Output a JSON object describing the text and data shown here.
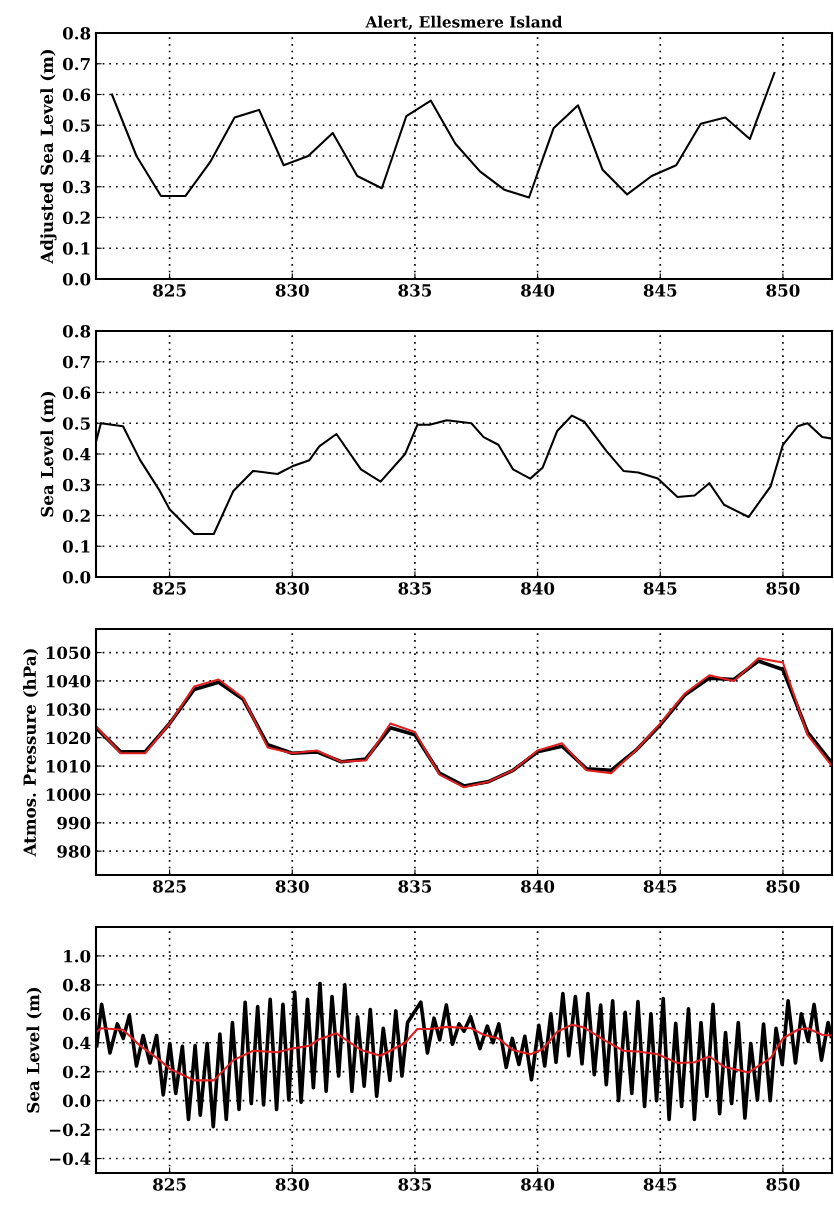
{
  "chart_data": [
    {
      "type": "line",
      "title": "Alert, Ellesmere Island",
      "ylabel": "Adjusted Sea Level (m)",
      "xlim": [
        822,
        852
      ],
      "xticks": [
        825,
        830,
        835,
        840,
        845,
        850
      ],
      "ylim": [
        0,
        0.8
      ],
      "yticks": [
        {
          "value": 0,
          "label": "0.0"
        },
        0.1,
        0.2,
        0.3,
        0.4,
        0.5,
        0.6,
        0.7,
        0.8
      ],
      "grid": true,
      "x": [
        822.65,
        823.65,
        824.65,
        825.65,
        826.65,
        827.65,
        828.65,
        829.65,
        830.65,
        831.65,
        832.65,
        833.65,
        834.65,
        835.65,
        836.65,
        837.65,
        838.65,
        839.65,
        840.65,
        841.65,
        842.65,
        843.65,
        844.65,
        845.65,
        846.65,
        847.65,
        848.65,
        849.65
      ],
      "series": [
        {
          "color": "#000000",
          "values": [
            0.6,
            0.4,
            0.27,
            0.27,
            0.38,
            0.525,
            0.55,
            0.37,
            0.4,
            0.475,
            0.335,
            0.295,
            0.53,
            0.58,
            0.44,
            0.35,
            0.29,
            0.265,
            0.49,
            0.565,
            0.355,
            0.275,
            0.335,
            0.37,
            0.505,
            0.525,
            0.455,
            0.67
          ]
        }
      ]
    },
    {
      "type": "line",
      "ylabel": "Sea Level (m)",
      "xlim": [
        822,
        852
      ],
      "xticks": [
        825,
        830,
        835,
        840,
        845,
        850
      ],
      "ylim": [
        0,
        0.8
      ],
      "yticks": [
        {
          "value": 0,
          "label": "0.0"
        },
        0.1,
        0.2,
        0.3,
        0.4,
        0.5,
        0.6,
        0.7,
        0.8
      ],
      "grid": true,
      "x": [
        822.0,
        822.2,
        823.1,
        823.8,
        824.6,
        825.0,
        826.0,
        826.8,
        827.6,
        828.4,
        829.4,
        830.0,
        830.7,
        831.1,
        831.8,
        832.8,
        833.6,
        834.6,
        835.1,
        835.6,
        836.3,
        837.3,
        837.8,
        838.4,
        839.0,
        839.7,
        840.2,
        840.8,
        841.4,
        841.9,
        842.8,
        843.5,
        844.1,
        844.9,
        845.7,
        846.4,
        847.0,
        847.6,
        848.6,
        849.5,
        850.0,
        850.6,
        851.0,
        851.6,
        852.0
      ],
      "series": [
        {
          "color": "#000000",
          "values": [
            0.44,
            0.5,
            0.49,
            0.38,
            0.28,
            0.22,
            0.14,
            0.14,
            0.28,
            0.345,
            0.335,
            0.36,
            0.38,
            0.425,
            0.465,
            0.35,
            0.31,
            0.4,
            0.495,
            0.495,
            0.51,
            0.5,
            0.455,
            0.43,
            0.35,
            0.32,
            0.355,
            0.475,
            0.525,
            0.505,
            0.41,
            0.345,
            0.34,
            0.32,
            0.26,
            0.265,
            0.305,
            0.235,
            0.195,
            0.295,
            0.43,
            0.49,
            0.5,
            0.455,
            0.45
          ]
        }
      ]
    },
    {
      "type": "line",
      "ylabel": "Atmos. Pressure (hPa)",
      "xlim": [
        822,
        852
      ],
      "xticks": [
        825,
        830,
        835,
        840,
        845,
        850
      ],
      "ylim": [
        971.6,
        1058.3
      ],
      "yticks": [
        980,
        990,
        1000,
        1010,
        1020,
        1030,
        1040,
        1050
      ],
      "grid": true,
      "x": [
        822,
        823,
        824,
        825,
        826,
        827,
        828,
        829,
        830,
        831,
        832,
        833,
        834,
        835,
        836,
        837,
        838,
        839,
        840,
        841,
        842,
        843,
        844,
        845,
        846,
        847,
        848,
        849,
        850,
        851,
        852
      ],
      "series": [
        {
          "color": "#000000",
          "values": [
            1023.5,
            1015,
            1015,
            1025,
            1037,
            1039.5,
            1033.5,
            1017.5,
            1014.5,
            1015,
            1011.5,
            1012.5,
            1023.5,
            1021,
            1007.5,
            1003,
            1004.5,
            1008.5,
            1015,
            1017,
            1009,
            1008.5,
            1015.5,
            1024.5,
            1035,
            1041,
            1040.5,
            1047,
            1044,
            1022,
            1011
          ]
        },
        {
          "color": "#e02020",
          "values": [
            1024,
            1014.5,
            1014.5,
            1025,
            1038,
            1040.5,
            1034,
            1016.5,
            1014.5,
            1015.5,
            1011.5,
            1012,
            1025,
            1022,
            1007,
            1002.5,
            1004.5,
            1008.5,
            1015.5,
            1018,
            1008.5,
            1007.5,
            1015.5,
            1025,
            1035.5,
            1042,
            1040,
            1048,
            1046.5,
            1021,
            1010
          ]
        }
      ]
    },
    {
      "type": "line",
      "ylabel": "Sea Level (m)",
      "xlim": [
        822,
        852
      ],
      "xticks": [
        825,
        830,
        835,
        840,
        845,
        850
      ],
      "ylim": [
        -0.5,
        1.2
      ],
      "yticks": [
        {
          "value": -0.4,
          "label": "−0.4"
        },
        {
          "value": -0.2,
          "label": "−0.2"
        },
        {
          "value": 0,
          "label": "0.0"
        },
        0.2,
        0.4,
        0.6,
        0.8,
        {
          "value": 1,
          "label": "1.0"
        }
      ],
      "grid": true,
      "series": [
        {
          "color": "#000000",
          "x": [
            822.03,
            822.23,
            822.57,
            822.87,
            823.11,
            823.36,
            823.65,
            823.92,
            824.2,
            824.47,
            824.74,
            825.01,
            825.25,
            825.52,
            825.77,
            826.04,
            826.25,
            826.53,
            826.78,
            827.05,
            827.31,
            827.56,
            827.83,
            828.08,
            828.33,
            828.59,
            828.83,
            829.1,
            829.36,
            829.62,
            829.86,
            830.1,
            830.36,
            830.62,
            830.86,
            831.13,
            831.38,
            831.62,
            831.89,
            832.14,
            832.43,
            832.66,
            832.93,
            833.18,
            833.44,
            833.71,
            833.98,
            834.22,
            834.47,
            834.7,
            835.24,
            835.51,
            835.78,
            836.01,
            836.28,
            836.53,
            836.8,
            837.0,
            837.27,
            837.65,
            837.95,
            838.18,
            838.42,
            838.72,
            838.97,
            839.24,
            839.48,
            839.75,
            840.05,
            840.29,
            840.54,
            840.75,
            841.03,
            841.27,
            841.54,
            841.81,
            842.05,
            842.31,
            842.57,
            842.8,
            843.06,
            843.3,
            843.57,
            843.84,
            844.09,
            844.36,
            844.62,
            844.85,
            845.12,
            845.36,
            845.63,
            845.87,
            846.15,
            846.39,
            846.66,
            846.9,
            847.15,
            847.42,
            847.66,
            847.91,
            848.18,
            848.45,
            848.69,
            848.96,
            849.21,
            849.48,
            849.72,
            849.97,
            850.21,
            850.51,
            850.75,
            851.03,
            851.27,
            851.57,
            851.84,
            851.97
          ],
          "values": [
            0.38,
            0.665,
            0.33,
            0.53,
            0.43,
            0.59,
            0.24,
            0.45,
            0.26,
            0.45,
            0.04,
            0.395,
            0.05,
            0.375,
            -0.13,
            0.38,
            -0.1,
            0.395,
            -0.18,
            0.46,
            -0.13,
            0.54,
            -0.06,
            0.68,
            -0.02,
            0.65,
            -0.03,
            0.7,
            -0.06,
            0.665,
            0.005,
            0.75,
            -0.01,
            0.7,
            0.09,
            0.81,
            0.065,
            0.72,
            0.17,
            0.8,
            0.065,
            0.58,
            0.1,
            0.63,
            0.03,
            0.5,
            0.14,
            0.62,
            0.17,
            0.54,
            0.68,
            0.33,
            0.57,
            0.42,
            0.66,
            0.39,
            0.53,
            0.48,
            0.58,
            0.36,
            0.515,
            0.4,
            0.53,
            0.23,
            0.43,
            0.25,
            0.445,
            0.145,
            0.52,
            0.24,
            0.6,
            0.265,
            0.74,
            0.31,
            0.72,
            0.255,
            0.74,
            0.18,
            0.66,
            0.11,
            0.69,
            0.0,
            0.61,
            0.05,
            0.685,
            -0.04,
            0.6,
            0.0,
            0.705,
            -0.13,
            0.535,
            -0.04,
            0.635,
            -0.13,
            0.54,
            0.03,
            0.665,
            -0.09,
            0.47,
            -0.02,
            0.54,
            -0.12,
            0.395,
            0.005,
            0.53,
            0.0,
            0.5,
            0.25,
            0.69,
            0.26,
            0.6,
            0.41,
            0.665,
            0.28,
            0.54,
            0.445
          ]
        },
        {
          "color": "#e02020",
          "x": [
            822.0,
            822.2,
            823.1,
            823.8,
            824.6,
            825.0,
            826.0,
            826.8,
            827.6,
            828.4,
            829.4,
            830.0,
            830.7,
            831.1,
            831.8,
            832.8,
            833.6,
            834.6,
            835.1,
            835.6,
            836.3,
            837.3,
            837.8,
            838.4,
            839.0,
            839.7,
            840.2,
            840.8,
            841.4,
            841.9,
            842.8,
            843.5,
            844.1,
            844.9,
            845.7,
            846.4,
            847.0,
            847.6,
            848.6,
            849.5,
            850.0,
            850.6,
            851.0,
            851.6,
            852.0
          ],
          "values": [
            0.47,
            0.5,
            0.49,
            0.38,
            0.28,
            0.22,
            0.14,
            0.14,
            0.28,
            0.345,
            0.335,
            0.36,
            0.38,
            0.425,
            0.465,
            0.35,
            0.31,
            0.4,
            0.495,
            0.495,
            0.51,
            0.5,
            0.455,
            0.43,
            0.35,
            0.32,
            0.355,
            0.475,
            0.525,
            0.505,
            0.41,
            0.345,
            0.34,
            0.32,
            0.26,
            0.265,
            0.305,
            0.235,
            0.195,
            0.295,
            0.43,
            0.49,
            0.5,
            0.455,
            0.45
          ]
        }
      ]
    }
  ]
}
